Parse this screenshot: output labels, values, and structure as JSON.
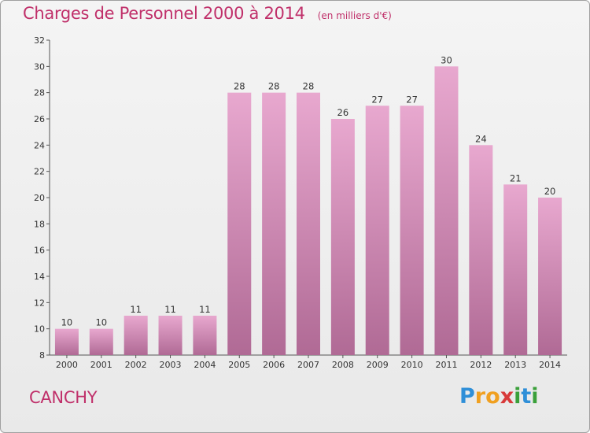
{
  "header": {
    "title": "Charges de Personnel 2000 à 2014",
    "subtitle": "(en milliers d'€)"
  },
  "commune": "CANCHY",
  "logo": {
    "text": "Proxiti",
    "letters": [
      {
        "ch": "P",
        "color": "#2f8fd8"
      },
      {
        "ch": "r",
        "color": "#f0a020"
      },
      {
        "ch": "o",
        "color": "#f0a020"
      },
      {
        "ch": "x",
        "color": "#d83a3a"
      },
      {
        "ch": "i",
        "color": "#3aa03a"
      },
      {
        "ch": "t",
        "color": "#2f8fd8"
      },
      {
        "ch": "i",
        "color": "#3aa03a"
      }
    ]
  },
  "chart_data": {
    "type": "bar",
    "title": "Charges de Personnel 2000 à 2014",
    "subtitle": "(en milliers d'€)",
    "xlabel": "",
    "ylabel": "",
    "categories": [
      "2000",
      "2001",
      "2002",
      "2003",
      "2004",
      "2005",
      "2006",
      "2007",
      "2008",
      "2009",
      "2010",
      "2011",
      "2012",
      "2013",
      "2014"
    ],
    "values": [
      10,
      10,
      11,
      11,
      11,
      28,
      28,
      28,
      26,
      27,
      27,
      30,
      24,
      21,
      20
    ],
    "ylim": [
      8,
      32
    ],
    "yticks": [
      8,
      10,
      12,
      14,
      16,
      18,
      20,
      22,
      24,
      26,
      28,
      30,
      32
    ],
    "grid": false,
    "legend": "none",
    "colors": {
      "bar_top": "#e8a8cf",
      "bar_bottom": "#b06a95",
      "text": "#c0306a"
    }
  }
}
